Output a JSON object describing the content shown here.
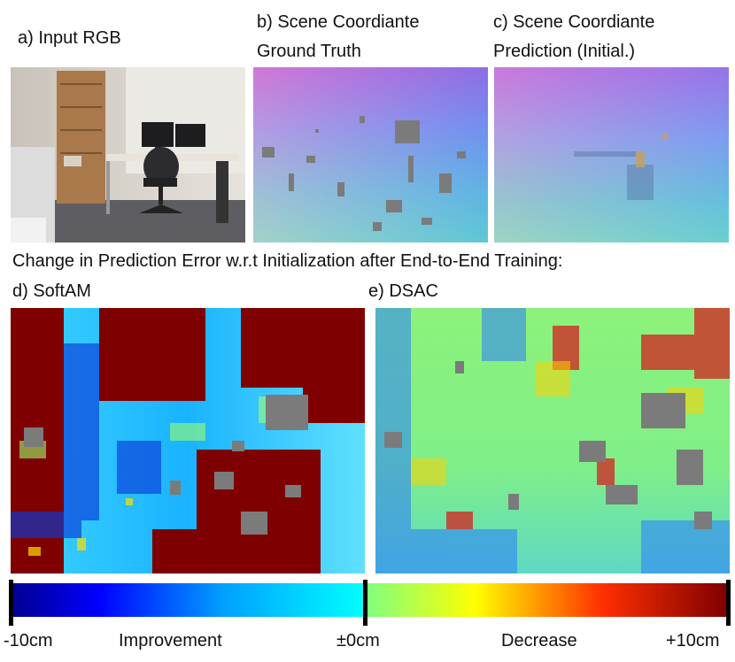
{
  "figure": {
    "panel_a": {
      "label": "a) Input RGB"
    },
    "panel_b": {
      "label_line1": "b) Scene Coordiante",
      "label_line2": "Ground Truth"
    },
    "panel_c": {
      "label_line1": "c) Scene Coordiante",
      "label_line2": "Prediction (Initial.)"
    },
    "section_title": "Change in Prediction Error w.r.t Initialization after End-to-End Training:",
    "panel_d": {
      "label": "d) SoftAM"
    },
    "panel_e": {
      "label": "e) DSAC"
    },
    "colorbar": {
      "ticks": [
        "-10cm",
        "Improvement",
        "±0cm",
        "Decrease",
        "+10cm"
      ],
      "colors": [
        "#00008f",
        "#0000ff",
        "#00ffff",
        "#7fff7f",
        "#ffff00",
        "#ff0000",
        "#7f0000"
      ]
    }
  }
}
